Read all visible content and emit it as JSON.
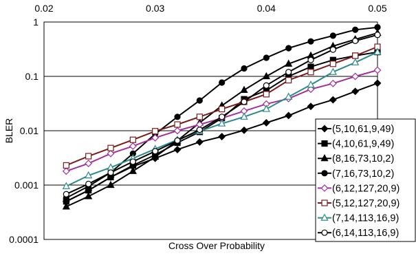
{
  "chart_data": {
    "type": "line",
    "title": "",
    "xlabel": "Cross Over Probability",
    "ylabel": "BLER",
    "x_axis_position": "top",
    "xlim": [
      0.02,
      0.05
    ],
    "xticks": [
      "0.02",
      "0.03",
      "0.04",
      "0.05"
    ],
    "xtick_values": [
      0.02,
      0.03,
      0.04,
      0.05
    ],
    "y_scale": "log",
    "ylim": [
      0.0001,
      1
    ],
    "yticks": [
      "1",
      "0.1",
      "0.01",
      "0.001",
      "0.0001"
    ],
    "ytick_values": [
      1,
      0.1,
      0.01,
      0.001,
      0.0001
    ],
    "grid": "horizontal major gridlines",
    "legend_position": "bottom-right",
    "x": [
      0.022,
      0.024,
      0.026,
      0.028,
      0.03,
      0.032,
      0.034,
      0.036,
      0.038,
      0.04,
      0.042,
      0.044,
      0.046,
      0.048,
      0.05
    ],
    "series": [
      {
        "name": "(5,10,61,9,49)",
        "marker": "diamond",
        "fill": "filled",
        "color": "#000000",
        "values": [
          0.0005,
          0.0008,
          0.0014,
          0.0022,
          0.0031,
          0.0045,
          0.0062,
          0.0078,
          0.0102,
          0.014,
          0.019,
          0.028,
          0.037,
          0.053,
          0.075
        ]
      },
      {
        "name": "(4,10,61,9,49)",
        "marker": "square",
        "fill": "filled",
        "color": "#000000",
        "values": [
          0.0005,
          0.0008,
          0.0014,
          0.0023,
          0.0036,
          0.006,
          0.0095,
          0.017,
          0.038,
          0.055,
          0.1,
          0.15,
          0.2,
          0.24,
          0.28
        ]
      },
      {
        "name": "(8,16,73,10,2)",
        "marker": "triangle",
        "fill": "filled",
        "color": "#000000",
        "values": [
          0.0004,
          0.00062,
          0.001,
          0.0018,
          0.0033,
          0.0066,
          0.014,
          0.029,
          0.056,
          0.1,
          0.17,
          0.24,
          0.36,
          0.48,
          0.63
        ]
      },
      {
        "name": "(7,16,73,10,2)",
        "marker": "circle",
        "fill": "filled",
        "color": "#000000",
        "values": [
          0.00058,
          0.00095,
          0.0017,
          0.0038,
          0.0087,
          0.018,
          0.036,
          0.077,
          0.14,
          0.22,
          0.33,
          0.44,
          0.56,
          0.72,
          0.8
        ]
      },
      {
        "name": "(6,12,127,20,9)",
        "marker": "diamond",
        "fill": "open",
        "color": "#a030a0",
        "values": [
          0.0018,
          0.0025,
          0.0038,
          0.0052,
          0.0074,
          0.01,
          0.013,
          0.017,
          0.023,
          0.031,
          0.039,
          0.058,
          0.074,
          0.1,
          0.13
        ]
      },
      {
        "name": "(5,12,127,20,9)",
        "marker": "square",
        "fill": "open",
        "color": "#7a1a1a",
        "values": [
          0.0023,
          0.0034,
          0.0048,
          0.0068,
          0.0098,
          0.013,
          0.018,
          0.025,
          0.034,
          0.047,
          0.085,
          0.12,
          0.17,
          0.24,
          0.35
        ]
      },
      {
        "name": "(7,14,113,16,9)",
        "marker": "triangle",
        "fill": "open",
        "color": "#2a8a8a",
        "values": [
          0.00095,
          0.0015,
          0.0021,
          0.0031,
          0.0046,
          0.0068,
          0.0098,
          0.0135,
          0.018,
          0.025,
          0.042,
          0.07,
          0.12,
          0.18,
          0.28
        ]
      },
      {
        "name": "(6,14,113,16,9)",
        "marker": "circle",
        "fill": "open",
        "color": "#000000",
        "values": [
          0.00068,
          0.00105,
          0.0017,
          0.0027,
          0.0042,
          0.0066,
          0.0104,
          0.018,
          0.034,
          0.068,
          0.12,
          0.2,
          0.31,
          0.45,
          0.58
        ]
      }
    ]
  }
}
